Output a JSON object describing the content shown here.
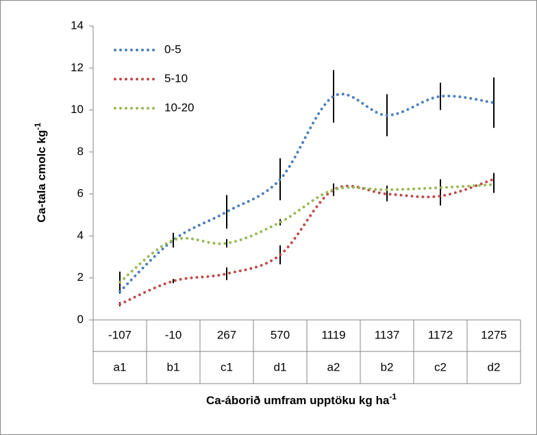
{
  "chart_data": {
    "type": "line",
    "categories": [
      "-107",
      "-10",
      "267",
      "570",
      "1119",
      "1137",
      "1172",
      "1275"
    ],
    "category_groups": [
      "a1",
      "b1",
      "c1",
      "d1",
      "a2",
      "b2",
      "c2",
      "d2"
    ],
    "series": [
      {
        "name": "0-5",
        "color": "#4a7ebb",
        "values": [
          1.35,
          3.8,
          5.15,
          6.7,
          10.65,
          9.75,
          10.65,
          10.35
        ],
        "errors": [
          0.1,
          0.3,
          0.8,
          1.0,
          1.25,
          1.0,
          0.65,
          1.2
        ]
      },
      {
        "name": "5-10",
        "color": "#be4b48",
        "values": [
          0.75,
          1.85,
          2.2,
          3.1,
          6.2,
          6.0,
          5.9,
          6.7
        ],
        "errors": [
          0.1,
          0.1,
          0.3,
          0.45,
          0.3,
          0.35,
          0.45,
          0.3
        ]
      },
      {
        "name": "10-20",
        "color": "#98b954",
        "values": [
          1.8,
          3.8,
          3.65,
          4.65,
          6.2,
          6.2,
          6.3,
          6.45
        ],
        "errors": [
          0.5,
          0.35,
          0.2,
          0.15,
          0.2,
          0.2,
          0.4,
          0.4
        ]
      }
    ],
    "ylim": [
      0,
      14
    ],
    "yticks": [
      0,
      2,
      4,
      6,
      8,
      10,
      12,
      14
    ],
    "y_label": {
      "text": "Ca-tala  cmolc kg",
      "sup": "-1"
    },
    "x_label": {
      "text": "Ca-áborið umfram upptöku kg ha",
      "sup": "-1"
    },
    "legend": "upper left",
    "smooth": true
  }
}
